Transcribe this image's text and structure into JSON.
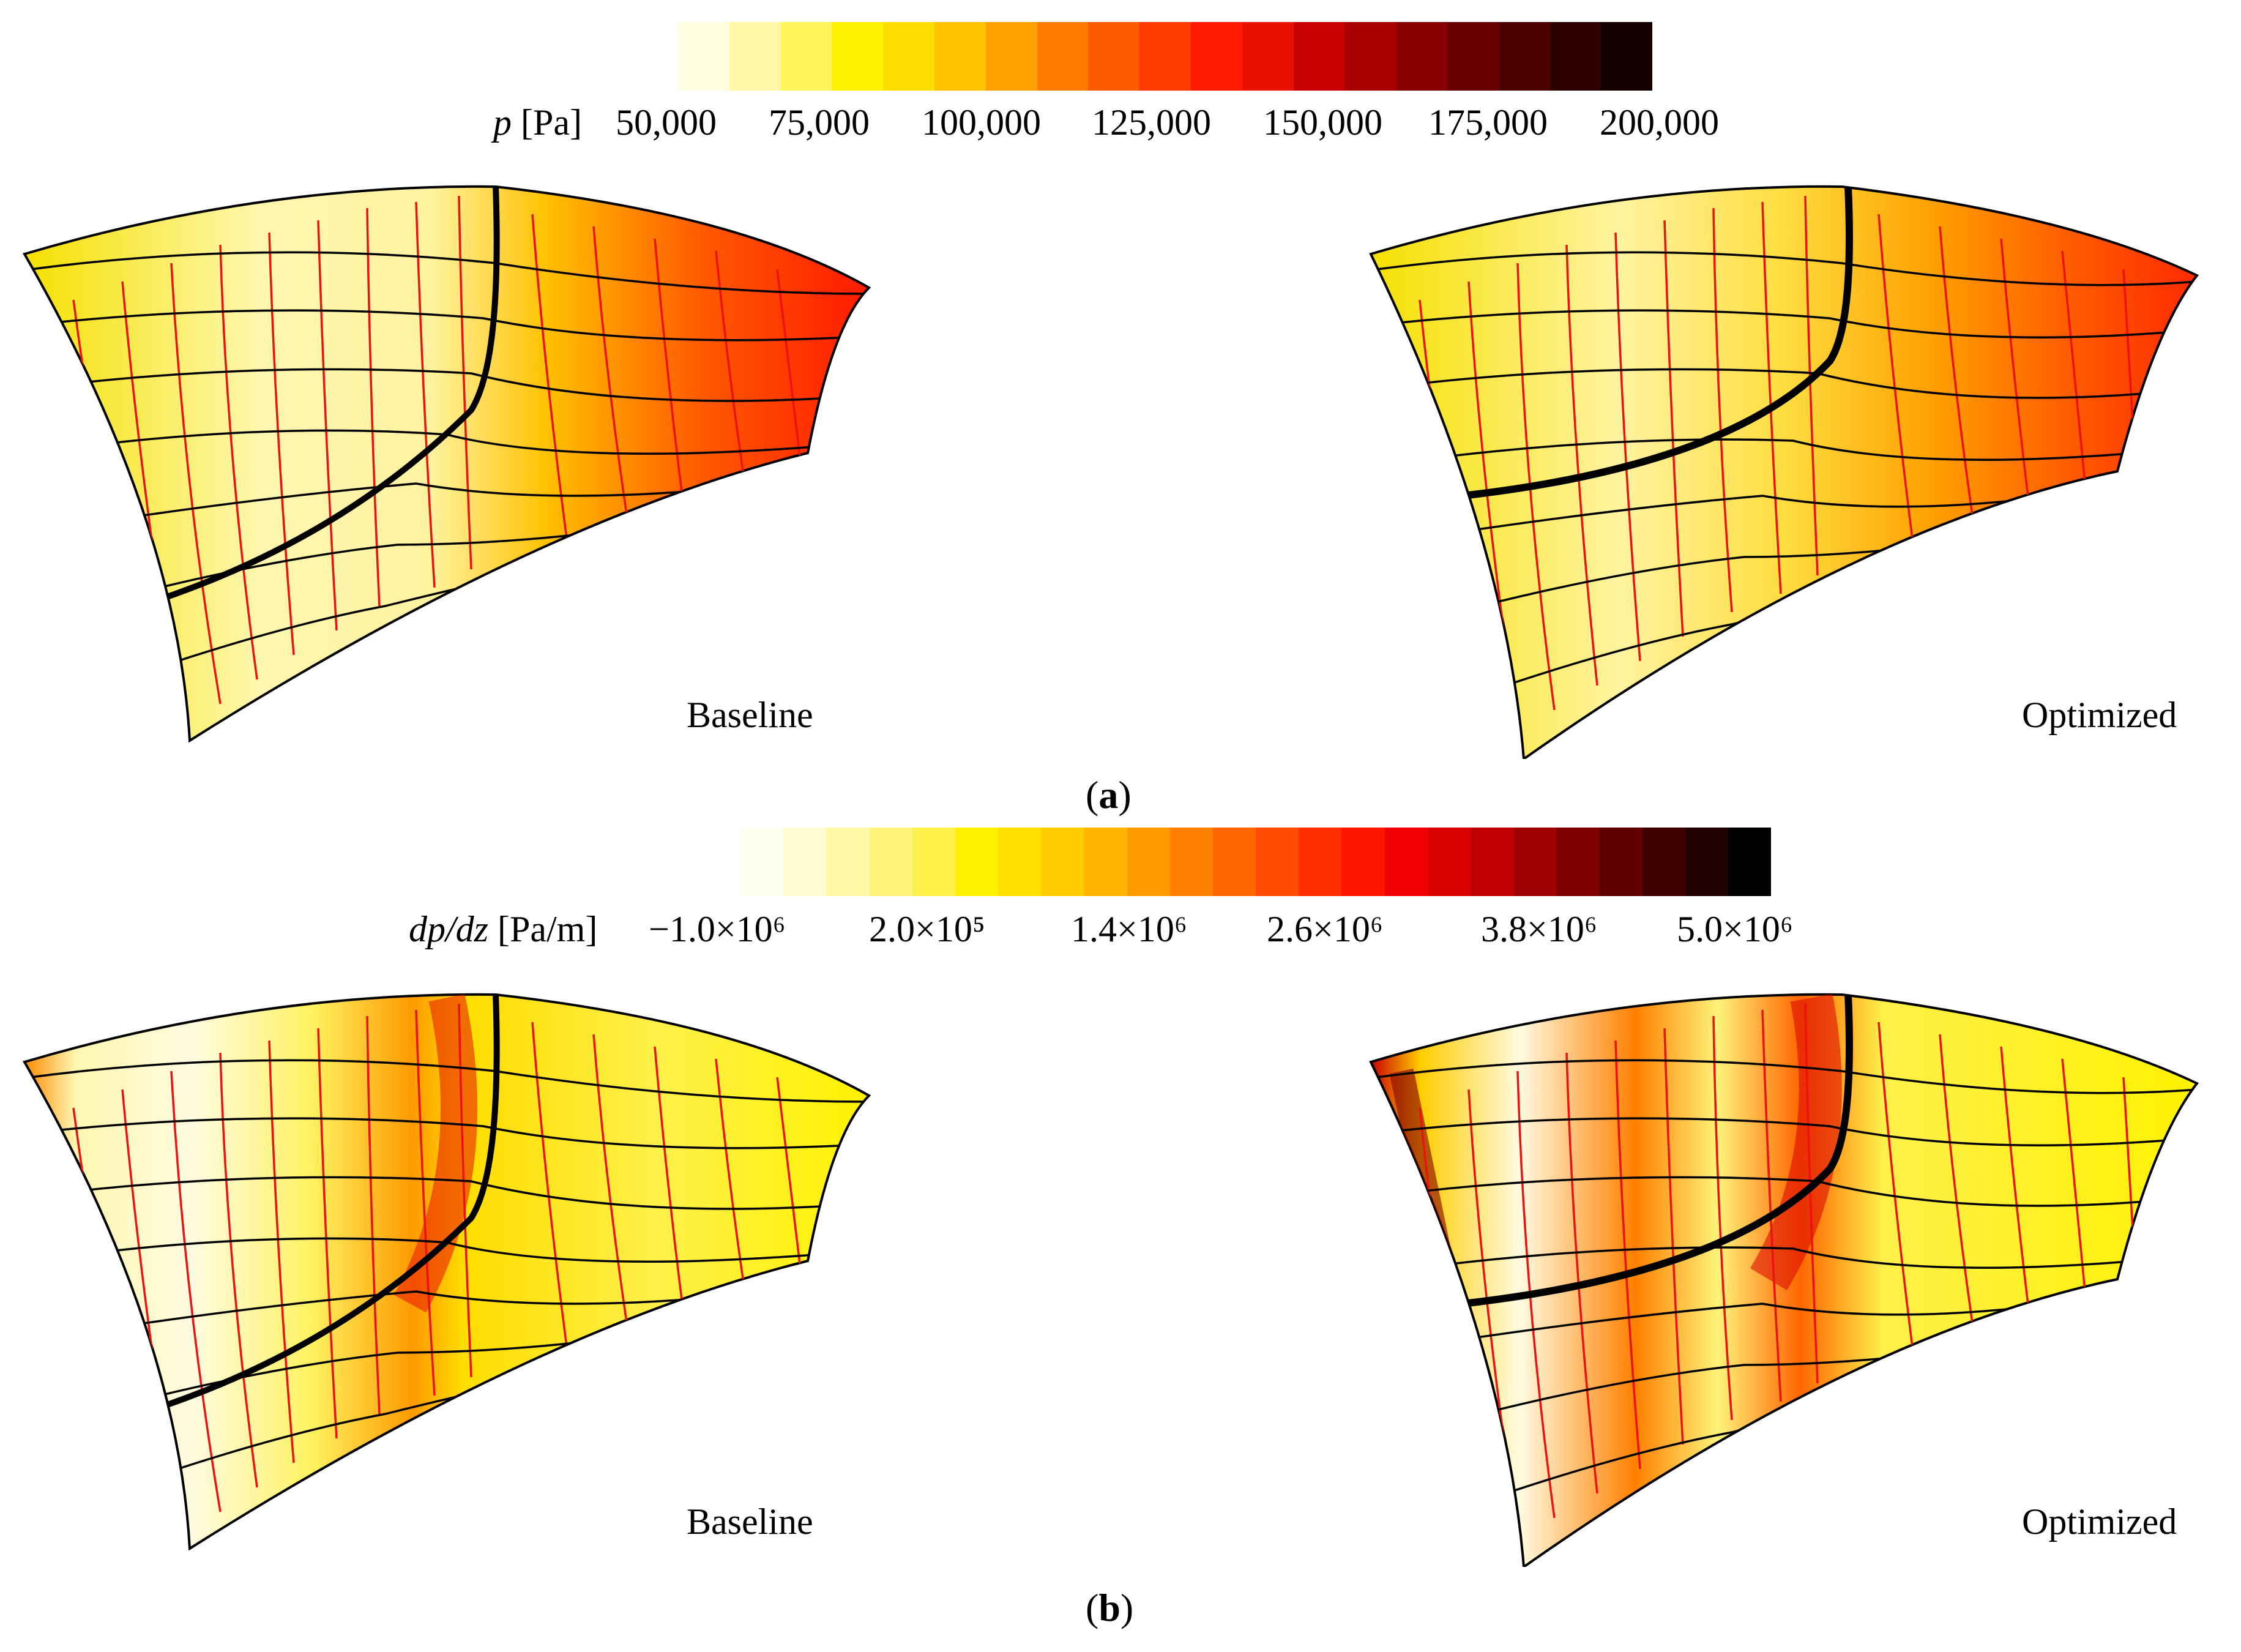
{
  "figure": {
    "part_a": {
      "sublabel": "a",
      "colorbar": {
        "variable_symbol": "p",
        "variable_unit": "[Pa]",
        "ticks": [
          "50,000",
          "75,000",
          "100,000",
          "125,000",
          "150,000",
          "175,000",
          "200,000"
        ],
        "colors": [
          "#fffde0",
          "#fff7a8",
          "#fff45c",
          "#fff200",
          "#ffdd00",
          "#ffc200",
          "#ff9f00",
          "#ff7a00",
          "#ff5a00",
          "#ff3a00",
          "#ff1a00",
          "#e81000",
          "#c80000",
          "#a80000",
          "#880000",
          "#680000",
          "#4a0000",
          "#2e0000",
          "#140000"
        ]
      },
      "panels": [
        {
          "name": "Baseline",
          "field": "p"
        },
        {
          "name": "Optimized",
          "field": "p"
        }
      ]
    },
    "part_b": {
      "sublabel": "b",
      "colorbar": {
        "variable_symbol": "dp/dz",
        "variable_unit": "[Pa/m]",
        "ticks": [
          "−1.0×10⁶",
          "2.0×10⁵",
          "1.4×10⁶",
          "2.6×10⁶",
          "3.8×10⁶",
          "5.0×10⁶"
        ],
        "colors": [
          "#fffff0",
          "#fffbd0",
          "#fff7a8",
          "#fff37a",
          "#fff04a",
          "#fff200",
          "#ffe000",
          "#ffcc00",
          "#ffb400",
          "#ff9a00",
          "#ff8000",
          "#ff6600",
          "#ff4c00",
          "#ff3000",
          "#ff1400",
          "#f00000",
          "#d80000",
          "#c00000",
          "#a00000",
          "#800000",
          "#600000",
          "#400000",
          "#200000",
          "#000000"
        ]
      },
      "panels": [
        {
          "name": "Baseline",
          "field": "dp/dz"
        },
        {
          "name": "Optimized",
          "field": "dp/dz"
        }
      ]
    },
    "streamline_colors": {
      "black": "#000000",
      "red": "#ee1111"
    }
  }
}
